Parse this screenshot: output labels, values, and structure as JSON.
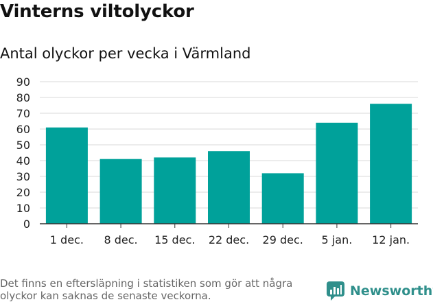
{
  "header": {
    "title": "Vinterns viltolyckor",
    "subtitle": "Antal olyckor per vecka i Värmland"
  },
  "footer": {
    "note": "Det finns en eftersläpning i statistiken som gör att några olyckor kan saknas de senaste veckorna.",
    "brand": "Newsworthy"
  },
  "colors": {
    "bar": "#00a19a",
    "grid": "#d9d9d9",
    "axis": "#333333",
    "brand": "#2f8f8b"
  },
  "chart_data": {
    "type": "bar",
    "title": "Vinterns viltolyckor",
    "subtitle": "Antal olyckor per vecka i Värmland",
    "categories": [
      "1 dec.",
      "8 dec.",
      "15 dec.",
      "22 dec.",
      "29 dec.",
      "5 jan.",
      "12 jan."
    ],
    "values": [
      61,
      41,
      42,
      46,
      32,
      64,
      76
    ],
    "xlabel": "",
    "ylabel": "",
    "ylim": [
      0,
      90
    ],
    "yticks": [
      0,
      10,
      20,
      30,
      40,
      50,
      60,
      70,
      80,
      90
    ],
    "grid": true,
    "legend": "none"
  }
}
